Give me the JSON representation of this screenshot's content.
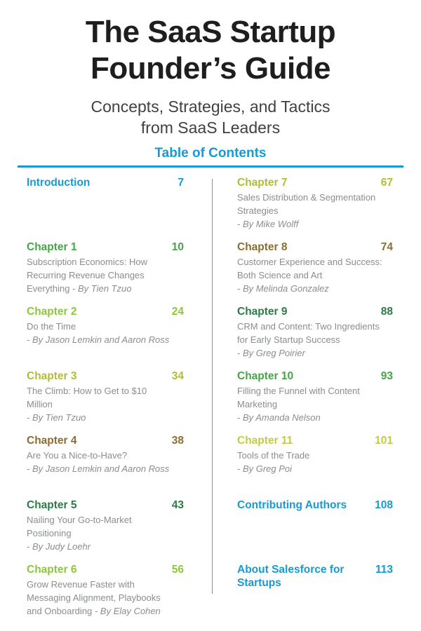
{
  "header": {
    "title_line1": "The SaaS Startup",
    "title_line2": "Founder’s Guide",
    "subtitle_line1": "Concepts, Strategies, and Tactics",
    "subtitle_line2": "from SaaS Leaders",
    "toc_heading": "Table of Contents"
  },
  "colors": {
    "accent_blue": "#189ad2",
    "title_black": "#1e1e1e",
    "subtitle_gray": "#414141",
    "description_gray": "#8a8d8f",
    "divider_gray": "#8f8f8f",
    "green_medium": "#47a447",
    "green_lime": "#8dc63f",
    "green_olive": "#b0bd36",
    "green_dark": "#2b7b45",
    "green_pale_lime": "#c3cb45",
    "brown_gold": "#8c6d34",
    "page_background": "#ffffff"
  },
  "toc": {
    "left_column": [
      {
        "label": "Introduction",
        "page": "7",
        "color": "#189ad2",
        "lines": []
      },
      {
        "label": "Chapter 1",
        "page": "10",
        "color": "#47a447",
        "lines": [
          [
            {
              "t": "Subscription Economics: How",
              "i": false
            }
          ],
          [
            {
              "t": "Recurring Revenue Changes",
              "i": false
            }
          ],
          [
            {
              "t": "Everything ",
              "i": false
            },
            {
              "t": "- By Tien Tzuo",
              "i": true
            }
          ]
        ]
      },
      {
        "label": "Chapter 2",
        "page": "24",
        "color": "#8dc63f",
        "lines": [
          [
            {
              "t": "Do the Time",
              "i": false
            }
          ],
          [
            {
              "t": "- By Jason Lemkin and Aaron Ross",
              "i": true
            }
          ]
        ]
      },
      {
        "label": "Chapter 3",
        "page": "34",
        "color": "#b0bd36",
        "lines": [
          [
            {
              "t": "The Climb: How to Get to $10",
              "i": false
            }
          ],
          [
            {
              "t": "Million",
              "i": false
            }
          ],
          [
            {
              "t": "- By Tien Tzuo",
              "i": true
            }
          ]
        ]
      },
      {
        "label": "Chapter 4",
        "page": "38",
        "color": "#8c6d34",
        "lines": [
          [
            {
              "t": "Are You a Nice-to-Have?",
              "i": false
            }
          ],
          [
            {
              "t": "- By Jason Lemkin and Aaron Ross",
              "i": true
            }
          ]
        ]
      },
      {
        "label": "Chapter 5",
        "page": "43",
        "color": "#2b7b45",
        "lines": [
          [
            {
              "t": "Nailing Your Go-to-Market",
              "i": false
            }
          ],
          [
            {
              "t": "Positioning",
              "i": false
            }
          ],
          [
            {
              "t": "- By Judy Loehr",
              "i": true
            }
          ]
        ]
      },
      {
        "label": "Chapter 6",
        "page": "56",
        "color": "#8dc63f",
        "lines": [
          [
            {
              "t": "Grow Revenue Faster with",
              "i": false
            }
          ],
          [
            {
              "t": "Messaging Alignment, Playbooks",
              "i": false
            }
          ],
          [
            {
              "t": "and Onboarding ",
              "i": false
            },
            {
              "t": "- By Elay Cohen",
              "i": true
            }
          ]
        ]
      }
    ],
    "right_column": [
      {
        "label": "Chapter 7",
        "page": "67",
        "color": "#b0bd36",
        "lines": [
          [
            {
              "t": "Sales Distribution & Segmentation",
              "i": false
            }
          ],
          [
            {
              "t": "Strategies",
              "i": false
            }
          ],
          [
            {
              "t": "- By Mike Wolff",
              "i": true
            }
          ]
        ]
      },
      {
        "label": "Chapter 8",
        "page": "74",
        "color": "#8c6d34",
        "lines": [
          [
            {
              "t": "Customer Experience and Success:",
              "i": false
            }
          ],
          [
            {
              "t": "Both Science and Art",
              "i": false
            }
          ],
          [
            {
              "t": "- By Melinda Gonzalez",
              "i": true
            }
          ]
        ]
      },
      {
        "label": "Chapter 9",
        "page": "88",
        "color": "#2b7b45",
        "lines": [
          [
            {
              "t": "CRM and Content: Two Ingredients",
              "i": false
            }
          ],
          [
            {
              "t": "for Early Startup Success",
              "i": false
            }
          ],
          [
            {
              "t": "- By Greg Poirier",
              "i": true
            }
          ]
        ]
      },
      {
        "label": "Chapter 10",
        "page": "93",
        "color": "#47a447",
        "lines": [
          [
            {
              "t": "Filling the Funnel with Content",
              "i": false
            }
          ],
          [
            {
              "t": "Marketing",
              "i": false
            }
          ],
          [
            {
              "t": "- By Amanda Nelson",
              "i": true
            }
          ]
        ]
      },
      {
        "label": "Chapter 11",
        "page": "101",
        "color": "#c3cb45",
        "lines": [
          [
            {
              "t": "Tools of the Trade",
              "i": false
            }
          ],
          [
            {
              "t": "- By Greg Poi",
              "i": true
            }
          ]
        ]
      },
      {
        "label": "Contributing Authors",
        "page": "108",
        "color": "#189ad2",
        "lines": []
      },
      {
        "label": "About Salesforce for Startups",
        "page": "113",
        "color": "#189ad2",
        "lines": []
      }
    ]
  }
}
